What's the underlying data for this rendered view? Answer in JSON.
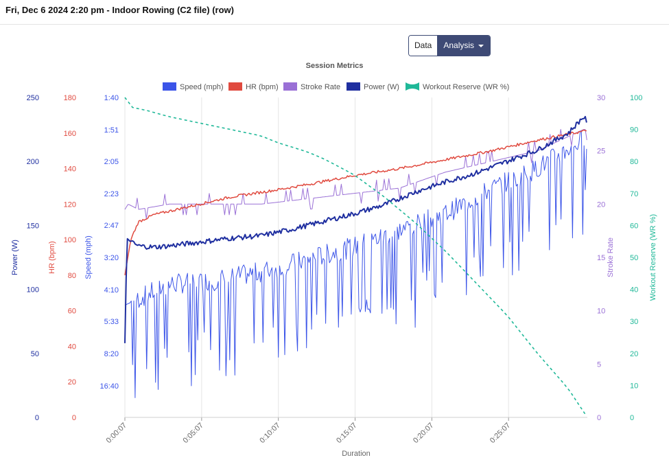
{
  "header": {
    "title": "Fri, Dec 6 2024 2:20 pm - Indoor Rowing (C2 file) (row)"
  },
  "toolbar": {
    "data_label": "Data",
    "analysis_label": "Analysis"
  },
  "colors": {
    "speed": "#3b54e8",
    "hr": "#e04a3f",
    "stroke": "#9a70d6",
    "power": "#1f2fa0",
    "wr": "#1fb898"
  },
  "chart_data": {
    "type": "line",
    "title": "Session Metrics",
    "xlabel": "Duration",
    "x_ticks": [
      "0:00:07",
      "0:05:07",
      "0:10:07",
      "0:15:07",
      "0:20:07",
      "0:25:07"
    ],
    "x_range_seconds": [
      7,
      1815
    ],
    "grid": true,
    "legend_position": "top-center",
    "axes": {
      "power": {
        "label": "Power (W)",
        "range": [
          0,
          250
        ],
        "ticks": [
          "0",
          "50",
          "100",
          "150",
          "200",
          "250"
        ]
      },
      "hr": {
        "label": "HR (bpm)",
        "range": [
          0,
          180
        ],
        "ticks": [
          "0",
          "20",
          "40",
          "60",
          "80",
          "100",
          "120",
          "140",
          "160",
          "180"
        ]
      },
      "speed": {
        "label": "Speed (mph)",
        "ticks": [
          "16:40",
          "8:20",
          "5:33",
          "4:10",
          "3:20",
          "2:47",
          "2:23",
          "2:05",
          "1:51",
          "1:40"
        ]
      },
      "stroke": {
        "label": "Stroke Rate",
        "range": [
          0,
          30
        ],
        "ticks": [
          "0",
          "5",
          "10",
          "15",
          "20",
          "25",
          "30"
        ]
      },
      "wr": {
        "label": "Workout Reserve (WR %)",
        "range": [
          0,
          100
        ],
        "ticks": [
          "0",
          "10",
          "20",
          "30",
          "40",
          "50",
          "60",
          "70",
          "80",
          "90",
          "100"
        ]
      }
    },
    "series": [
      {
        "name": "Speed (mph)",
        "axis": "speed",
        "x": [
          7,
          180,
          360,
          540,
          720,
          900,
          1080,
          1260,
          1440,
          1620,
          1800
        ],
        "values": [
          12.5,
          13.0,
          13.1,
          13.3,
          13.6,
          13.9,
          14.3,
          14.7,
          15.3,
          15.8,
          16.5
        ]
      },
      {
        "name": "HR (bpm)",
        "axis": "hr",
        "x": [
          7,
          30,
          60,
          120,
          180,
          300,
          420,
          600,
          720,
          900,
          1080,
          1260,
          1440,
          1620,
          1800,
          1815
        ],
        "values": [
          80,
          100,
          110,
          114,
          116,
          120,
          124,
          128,
          131,
          136,
          140,
          145,
          150,
          156,
          161,
          162
        ]
      },
      {
        "name": "Stroke Rate",
        "axis": "stroke",
        "x": [
          7,
          20,
          60,
          180,
          360,
          540,
          720,
          900,
          1080,
          1260,
          1440,
          1620,
          1800,
          1815
        ],
        "values": [
          19.5,
          20,
          19.5,
          20,
          20,
          20,
          20.5,
          21,
          21.5,
          23,
          24,
          25,
          27,
          27
        ]
      },
      {
        "name": "Power (W)",
        "axis": "power",
        "x": [
          7,
          15,
          30,
          60,
          120,
          180,
          300,
          420,
          540,
          660,
          780,
          900,
          1020,
          1140,
          1260,
          1380,
          1500,
          1620,
          1740,
          1800,
          1815
        ],
        "values": [
          58,
          140,
          137,
          134,
          133,
          134,
          137,
          140,
          142,
          147,
          153,
          159,
          166,
          176,
          184,
          191,
          200,
          209,
          222,
          235,
          231
        ]
      },
      {
        "name": "Workout Reserve (WR %)",
        "axis": "wr",
        "x": [
          7,
          30,
          90,
          180,
          300,
          420,
          540,
          600,
          720,
          780,
          900,
          1020,
          1140,
          1260,
          1380,
          1500,
          1620,
          1740,
          1815
        ],
        "values": [
          100,
          97,
          96,
          94,
          92,
          90,
          88,
          86,
          83,
          81,
          76,
          69,
          61,
          52,
          42,
          32,
          20,
          9,
          0
        ]
      }
    ]
  }
}
